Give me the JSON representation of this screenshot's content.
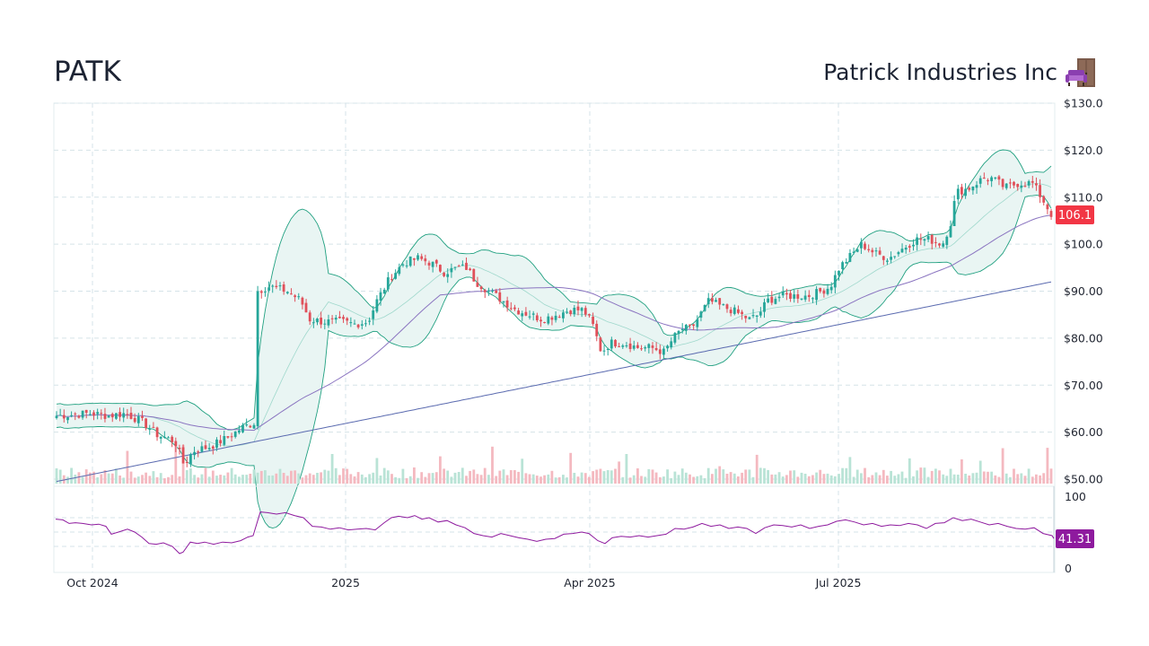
{
  "header": {
    "ticker": "PATK",
    "company": "Patrick Industries Inc"
  },
  "icons": {
    "company_icon": "sofa-and-door-icon"
  },
  "colors": {
    "up": "#26a69a",
    "down": "#e0505a",
    "band_line": "#20a080",
    "band_fill": "#e9f5f3",
    "ma_long": "#5b6bb0",
    "ma_mid": "#8a74c0",
    "rsi": "#8e1a9e",
    "price_badge": "#f23645",
    "rsi_badge": "#8e1a9e"
  },
  "chart_data": {
    "type": "candlestick",
    "y_axis": {
      "ticks": [
        "$130.0",
        "$120.0",
        "$110.0",
        "$100.0",
        "$90.00",
        "$80.00",
        "$70.00",
        "$60.00",
        "$50.00"
      ],
      "ylim": [
        48,
        130
      ]
    },
    "x_axis": {
      "ticks": [
        "Oct 2024",
        "2025",
        "Apr 2025",
        "Jul 2025"
      ]
    },
    "last_price": "106.1",
    "rsi": {
      "ticks": [
        "100",
        "0"
      ],
      "ylim": [
        0,
        100
      ],
      "last_value": "41.31",
      "path_points": [
        [
          0,
          68
        ],
        [
          8,
          67
        ],
        [
          15,
          62
        ],
        [
          22,
          63
        ],
        [
          30,
          62
        ],
        [
          40,
          60
        ],
        [
          48,
          61
        ],
        [
          56,
          58
        ],
        [
          62,
          47
        ],
        [
          70,
          50
        ],
        [
          80,
          54
        ],
        [
          88,
          50
        ],
        [
          96,
          43
        ],
        [
          104,
          34
        ],
        [
          112,
          33
        ],
        [
          120,
          35
        ],
        [
          130,
          30
        ],
        [
          138,
          20
        ],
        [
          142,
          22
        ],
        [
          150,
          36
        ],
        [
          158,
          34
        ],
        [
          166,
          36
        ],
        [
          176,
          33
        ],
        [
          186,
          36
        ],
        [
          196,
          35
        ],
        [
          206,
          38
        ],
        [
          214,
          43
        ],
        [
          220,
          45
        ],
        [
          228,
          78
        ],
        [
          236,
          77
        ],
        [
          246,
          75
        ],
        [
          256,
          77
        ],
        [
          266,
          73
        ],
        [
          276,
          70
        ],
        [
          286,
          58
        ],
        [
          296,
          57
        ],
        [
          306,
          54
        ],
        [
          316,
          56
        ],
        [
          326,
          53
        ],
        [
          336,
          54
        ],
        [
          346,
          55
        ],
        [
          356,
          53
        ],
        [
          366,
          63
        ],
        [
          374,
          70
        ],
        [
          382,
          72
        ],
        [
          392,
          70
        ],
        [
          400,
          73
        ],
        [
          408,
          68
        ],
        [
          416,
          70
        ],
        [
          426,
          64
        ],
        [
          436,
          66
        ],
        [
          446,
          60
        ],
        [
          456,
          56
        ],
        [
          466,
          48
        ],
        [
          476,
          45
        ],
        [
          486,
          43
        ],
        [
          496,
          48
        ],
        [
          506,
          45
        ],
        [
          516,
          42
        ],
        [
          526,
          40
        ],
        [
          536,
          37
        ],
        [
          546,
          40
        ],
        [
          556,
          41
        ],
        [
          566,
          47
        ],
        [
          576,
          48
        ],
        [
          586,
          50
        ],
        [
          594,
          48
        ],
        [
          604,
          38
        ],
        [
          612,
          34
        ],
        [
          620,
          42
        ],
        [
          630,
          44
        ],
        [
          640,
          43
        ],
        [
          650,
          45
        ],
        [
          660,
          43
        ],
        [
          670,
          45
        ],
        [
          680,
          47
        ],
        [
          690,
          55
        ],
        [
          700,
          54
        ],
        [
          710,
          57
        ],
        [
          720,
          62
        ],
        [
          730,
          58
        ],
        [
          740,
          60
        ],
        [
          750,
          55
        ],
        [
          760,
          57
        ],
        [
          770,
          55
        ],
        [
          780,
          48
        ],
        [
          790,
          56
        ],
        [
          800,
          60
        ],
        [
          810,
          59
        ],
        [
          820,
          57
        ],
        [
          830,
          60
        ],
        [
          840,
          55
        ],
        [
          850,
          58
        ],
        [
          860,
          60
        ],
        [
          870,
          65
        ],
        [
          880,
          67
        ],
        [
          890,
          64
        ],
        [
          900,
          60
        ],
        [
          910,
          62
        ],
        [
          920,
          58
        ],
        [
          930,
          60
        ],
        [
          940,
          59
        ],
        [
          950,
          62
        ],
        [
          960,
          60
        ],
        [
          970,
          55
        ],
        [
          980,
          62
        ],
        [
          990,
          63
        ],
        [
          1000,
          70
        ],
        [
          1010,
          66
        ],
        [
          1020,
          68
        ],
        [
          1030,
          64
        ],
        [
          1040,
          60
        ],
        [
          1050,
          62
        ],
        [
          1060,
          58
        ],
        [
          1070,
          55
        ],
        [
          1080,
          54
        ],
        [
          1090,
          56
        ],
        [
          1100,
          48
        ],
        [
          1110,
          45
        ],
        [
          1112,
          41
        ]
      ]
    }
  },
  "ohlc_path_hint": "generated"
}
